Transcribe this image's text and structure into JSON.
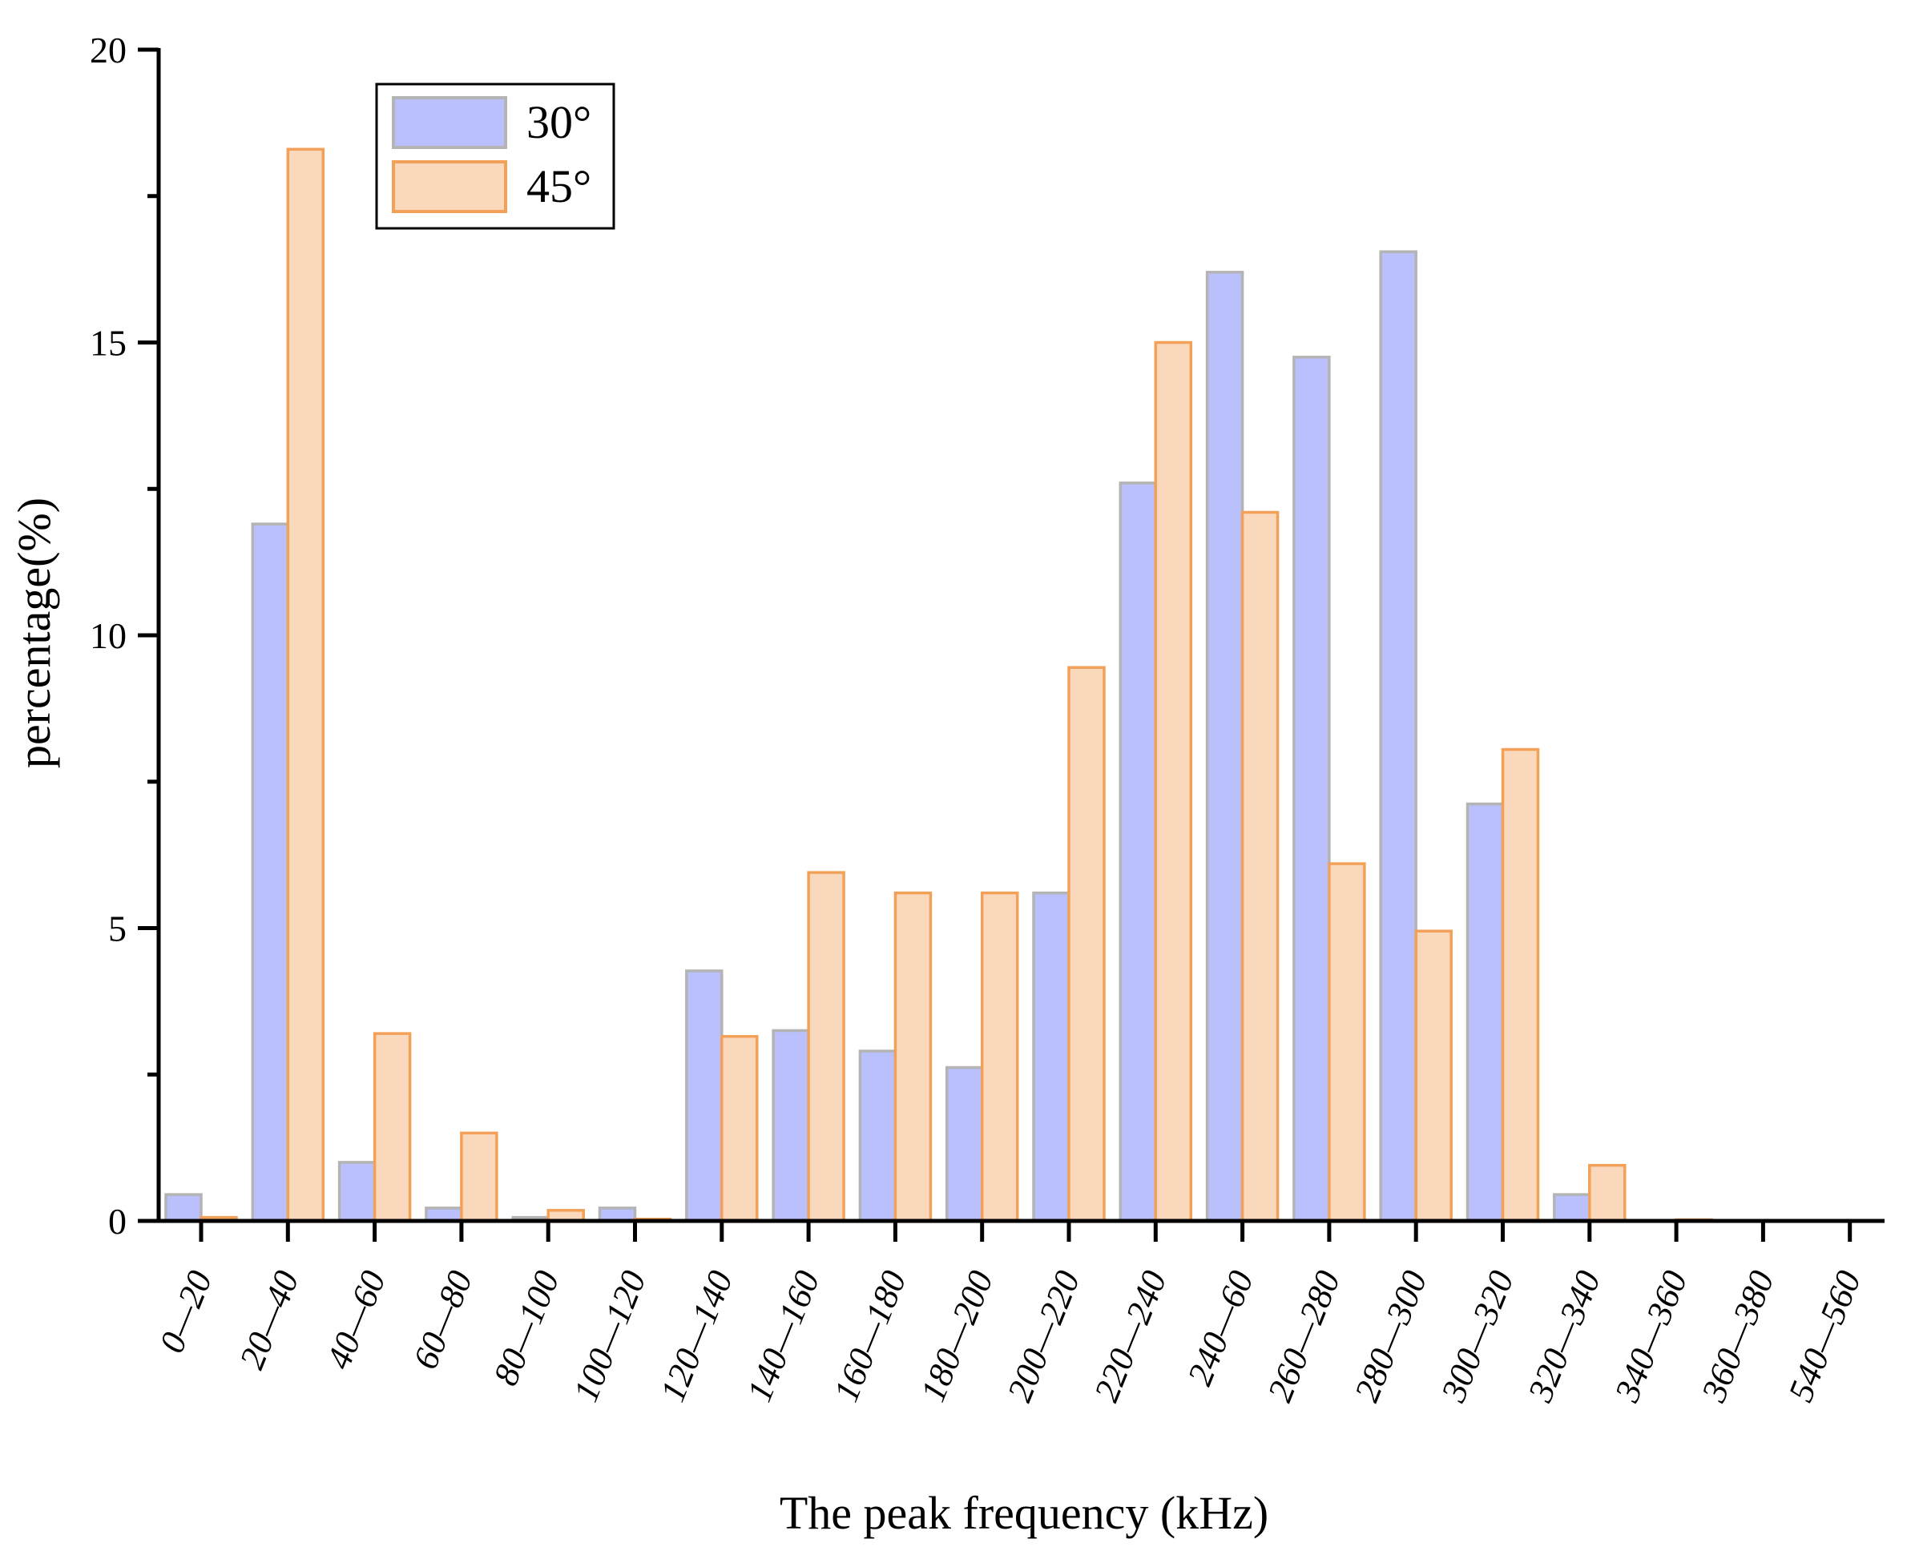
{
  "chart_data": {
    "type": "bar",
    "title": "",
    "xlabel": "The peak frequency (kHz)",
    "ylabel": "percentage(%)",
    "ylim": [
      0,
      20
    ],
    "yticks": [
      "0",
      "5",
      "10",
      "15",
      "20"
    ],
    "grid": false,
    "legend_position": "top-left",
    "categories": [
      "0—20",
      "20—40",
      "40—60",
      "60—80",
      "80—100",
      "100—120",
      "120—140",
      "140—160",
      "160—180",
      "180—200",
      "200—220",
      "220—240",
      "240—60",
      "260—280",
      "280—300",
      "300—320",
      "320—340",
      "340—360",
      "360—380",
      "540—560"
    ],
    "series": [
      {
        "name": "30°",
        "fill": "#b9c0fb",
        "stroke": "#b4b4b4",
        "values": [
          0.45,
          11.9,
          1.0,
          0.22,
          0.06,
          0.22,
          4.27,
          3.25,
          2.9,
          2.62,
          5.6,
          12.6,
          16.2,
          14.75,
          16.55,
          7.12,
          0.45,
          0,
          0,
          0
        ]
      },
      {
        "name": "45°",
        "fill": "#fad8bc",
        "stroke": "#f3a159",
        "values": [
          0.06,
          18.3,
          3.2,
          1.5,
          0.18,
          0.03,
          3.15,
          5.95,
          5.6,
          5.6,
          9.45,
          15.0,
          12.1,
          6.1,
          4.95,
          8.05,
          0.95,
          0.02,
          0,
          0
        ]
      }
    ]
  }
}
